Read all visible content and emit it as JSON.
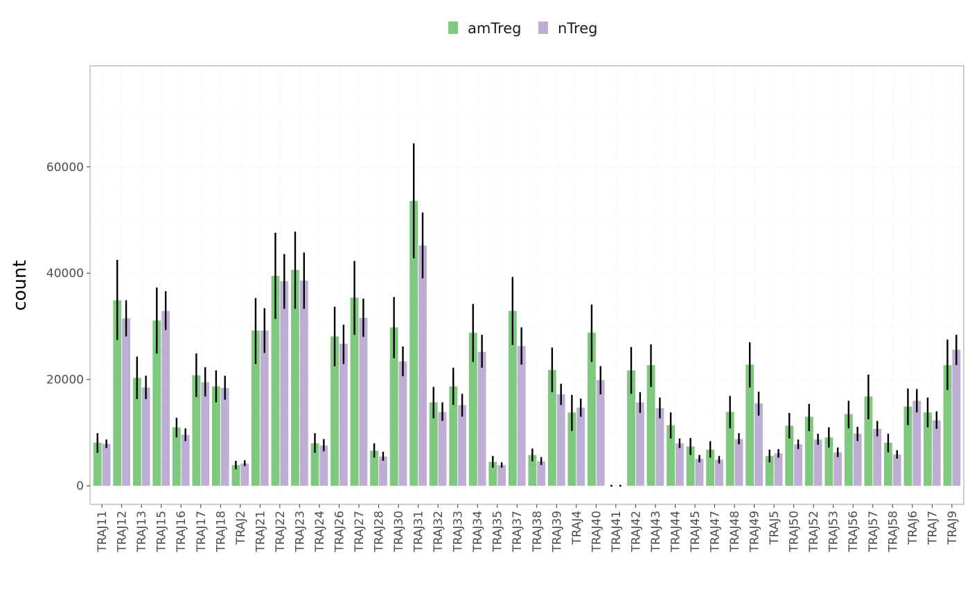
{
  "chart_data": {
    "type": "bar",
    "ylabel": "count",
    "xlabel": "",
    "ylim": [
      -3500,
      79000
    ],
    "yticks": [
      0,
      20000,
      40000,
      60000
    ],
    "ytick_labels": [
      "0",
      "20000",
      "40000",
      "60000"
    ],
    "grid": true,
    "legend_position": "top",
    "categories": [
      "TRAJ11",
      "TRAJ12",
      "TRAJ13",
      "TRAJ15",
      "TRAJ16",
      "TRAJ17",
      "TRAJ18",
      "TRAJ2",
      "TRAJ21",
      "TRAJ22",
      "TRAJ23",
      "TRAJ24",
      "TRAJ26",
      "TRAJ27",
      "TRAJ28",
      "TRAJ30",
      "TRAJ31",
      "TRAJ32",
      "TRAJ33",
      "TRAJ34",
      "TRAJ35",
      "TRAJ37",
      "TRAJ38",
      "TRAJ39",
      "TRAJ4",
      "TRAJ40",
      "TRAJ41",
      "TRAJ42",
      "TRAJ43",
      "TRAJ44",
      "TRAJ45",
      "TRAJ47",
      "TRAJ48",
      "TRAJ49",
      "TRAJ5",
      "TRAJ50",
      "TRAJ52",
      "TRAJ53",
      "TRAJ56",
      "TRAJ57",
      "TRAJ58",
      "TRAJ6",
      "TRAJ7",
      "TRAJ9"
    ],
    "series": [
      {
        "name": "amTreg",
        "color": "#7fc97f",
        "values": [
          8100,
          34900,
          20300,
          31100,
          11000,
          20800,
          18700,
          3900,
          29200,
          39500,
          40600,
          8000,
          28100,
          35400,
          6600,
          29800,
          53600,
          15700,
          18700,
          28800,
          4500,
          32900,
          5800,
          21800,
          13800,
          28800,
          0,
          21700,
          22700,
          11400,
          7400,
          6800,
          13900,
          22800,
          5600,
          11300,
          13000,
          9100,
          13500,
          16800,
          8100,
          14900,
          13800,
          22700
        ],
        "error_low": [
          6200,
          27400,
          16300,
          24900,
          9100,
          16700,
          15700,
          3100,
          22900,
          31400,
          33300,
          6200,
          22500,
          28400,
          5300,
          24000,
          42800,
          12700,
          15200,
          23300,
          3400,
          26500,
          4600,
          17600,
          10300,
          23300,
          0,
          17300,
          18600,
          8900,
          5800,
          5300,
          10800,
          18500,
          4400,
          8900,
          10300,
          7200,
          10800,
          12500,
          6300,
          11400,
          11000,
          18000
        ],
        "error_high": [
          9900,
          42500,
          24300,
          37300,
          12800,
          24900,
          21700,
          4700,
          35300,
          47600,
          47800,
          9900,
          33700,
          42300,
          8000,
          35500,
          64400,
          18600,
          22200,
          34200,
          5600,
          39300,
          7000,
          26000,
          17100,
          34100,
          0,
          26100,
          26600,
          13800,
          9000,
          8400,
          16900,
          27000,
          6800,
          13700,
          15400,
          11000,
          16000,
          20900,
          9800,
          18300,
          16600,
          27500
        ]
      },
      {
        "name": "nTreg",
        "color": "#beaed4",
        "values": [
          7900,
          31500,
          18500,
          32900,
          9600,
          19500,
          18400,
          4200,
          29200,
          38500,
          38600,
          7600,
          26700,
          31600,
          5500,
          23400,
          45200,
          13900,
          15200,
          25200,
          3900,
          26300,
          4600,
          17200,
          14700,
          19900,
          0,
          15700,
          14600,
          8000,
          5100,
          4900,
          8800,
          15500,
          6100,
          7800,
          8700,
          6300,
          9800,
          10700,
          5900,
          16000,
          12300,
          25600
        ],
        "error_low": [
          7100,
          28100,
          16300,
          29300,
          8400,
          16800,
          16200,
          3700,
          25000,
          33300,
          33300,
          6500,
          22900,
          28000,
          4700,
          20600,
          39000,
          12200,
          13000,
          22200,
          3400,
          22800,
          3900,
          15200,
          13000,
          17200,
          0,
          13700,
          12700,
          7100,
          4400,
          4200,
          7800,
          13200,
          5300,
          6900,
          7700,
          5400,
          8400,
          9300,
          5100,
          13800,
          10700,
          22700
        ],
        "error_high": [
          8700,
          34900,
          20700,
          36600,
          10800,
          22300,
          20700,
          4800,
          33400,
          43600,
          43900,
          8800,
          30300,
          35200,
          6400,
          26200,
          51400,
          15700,
          17300,
          28400,
          4400,
          29800,
          5400,
          19200,
          16400,
          22500,
          0,
          17600,
          16600,
          8900,
          5800,
          5600,
          9900,
          17700,
          6900,
          8700,
          9800,
          7200,
          11100,
          12200,
          6700,
          18200,
          14000,
          28400
        ]
      }
    ]
  }
}
